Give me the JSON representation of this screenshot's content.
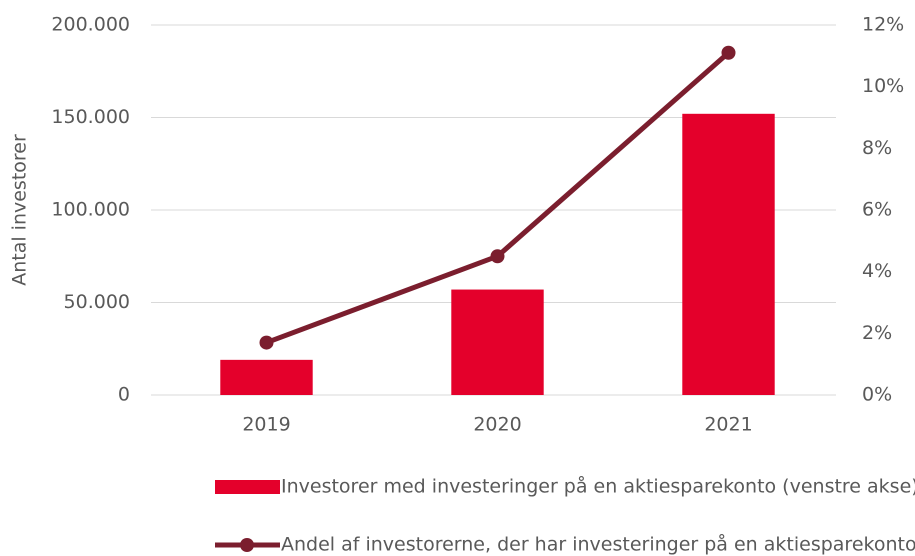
{
  "chart_data": {
    "type": "bar_line",
    "y_label": "Antal investorer",
    "categories": [
      "2019",
      "2020",
      "2021"
    ],
    "series": [
      {
        "name": "Investorer med investeringer på en aktiesparekonto (venstre akse)",
        "type": "bar",
        "color": "#e4002b",
        "values": [
          19000,
          57000,
          152000
        ]
      },
      {
        "name": "Andel af investorerne, der har investeringer på en aktiesparekonto (højre akse)",
        "type": "line",
        "axis": "y2",
        "color": "#7b1e2e",
        "values": [
          1.7,
          4.5,
          11.1
        ]
      }
    ],
    "ylim": [
      0,
      200000
    ],
    "yticks": [
      0,
      {
        "value": 50000,
        "label": "50.000"
      },
      {
        "value": 100000,
        "label": "100.000"
      },
      {
        "value": 150000,
        "label": "150.000"
      },
      {
        "value": 200000,
        "label": "200.000"
      }
    ],
    "y2lim": [
      0,
      12
    ],
    "y2ticks": [
      {
        "value": 0,
        "label": "0%"
      },
      {
        "value": 2,
        "label": "2%"
      },
      {
        "value": 4,
        "label": "4%"
      },
      {
        "value": 6,
        "label": "6%"
      },
      {
        "value": 8,
        "label": "8%"
      },
      {
        "value": 10,
        "label": "10%"
      },
      {
        "value": 12,
        "label": "12%"
      }
    ],
    "grid": true
  }
}
